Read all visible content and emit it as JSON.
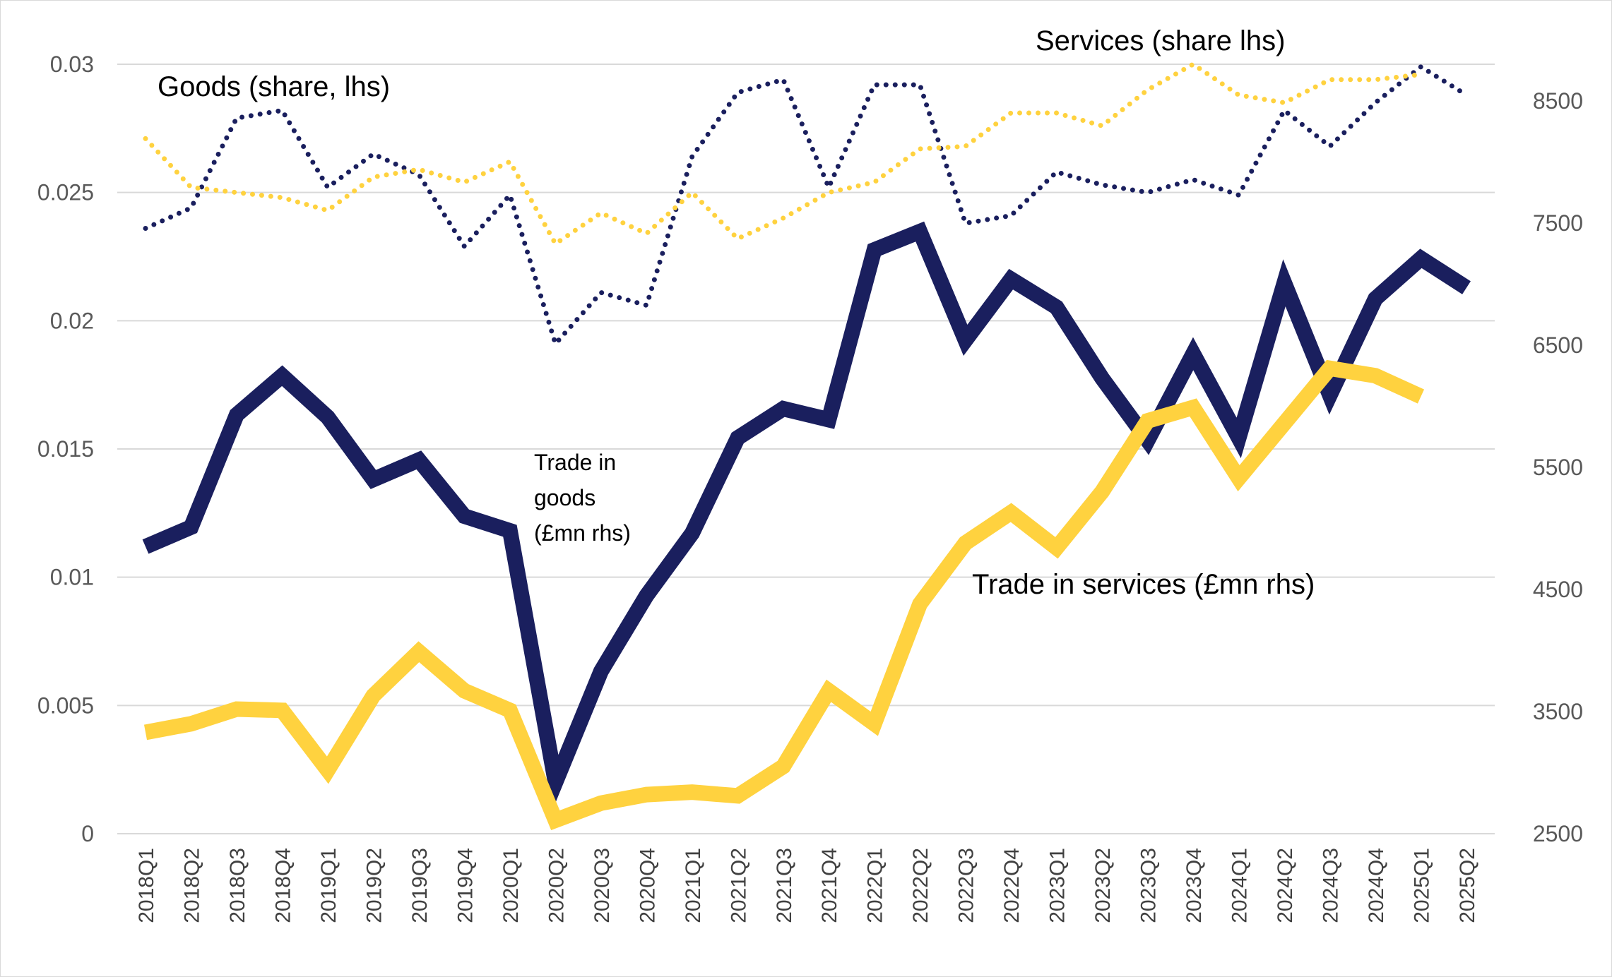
{
  "chart_data": {
    "type": "line",
    "categories": [
      "2018Q1",
      "2018Q2",
      "2018Q3",
      "2018Q4",
      "2019Q1",
      "2019Q2",
      "2019Q3",
      "2019Q4",
      "2020Q1",
      "2020Q2",
      "2020Q3",
      "2020Q4",
      "2021Q1",
      "2021Q2",
      "2021Q3",
      "2021Q4",
      "2022Q1",
      "2022Q2",
      "2022Q3",
      "2022Q4",
      "2023Q1",
      "2023Q2",
      "2023Q3",
      "2023Q4",
      "2024Q1",
      "2024Q2",
      "2024Q3",
      "2024Q4",
      "2025Q1",
      "2025Q2"
    ],
    "y_left": {
      "ticks": [
        "0",
        "0.005",
        "0.01",
        "0.015",
        "0.02",
        "0.025",
        "0.03"
      ],
      "range": [
        0,
        0.03
      ]
    },
    "y_right": {
      "ticks": [
        "2500",
        "3500",
        "4500",
        "5500",
        "6500",
        "7500",
        "8500"
      ],
      "range": [
        2500,
        8800
      ]
    },
    "grid": true,
    "series": [
      {
        "axis": "right",
        "style": "solid",
        "color": "#1a1f5e",
        "values": [
          4850,
          5010,
          5930,
          6250,
          5910,
          5400,
          5560,
          5100,
          4980,
          2920,
          3830,
          4450,
          4960,
          5740,
          5980,
          5890,
          7280,
          7430,
          6540,
          7040,
          6810,
          6230,
          5720,
          6430,
          5740,
          7010,
          6090,
          6880,
          7210,
          6970
        ]
      },
      {
        "axis": "right",
        "style": "solid",
        "color": "#ffd23f",
        "values": [
          3330,
          3400,
          3520,
          3510,
          3020,
          3630,
          3990,
          3670,
          3510,
          2610,
          2750,
          2820,
          2840,
          2810,
          3050,
          3670,
          3400,
          4380,
          4880,
          5130,
          4840,
          5300,
          5880,
          5990,
          5410,
          5860,
          6310,
          6250,
          6080,
          null
        ]
      },
      {
        "axis": "left",
        "style": "dotted",
        "color": "#1a1f5e",
        "values": [
          0.0236,
          0.0244,
          0.0279,
          0.0282,
          0.0252,
          0.0265,
          0.0257,
          0.0229,
          0.0249,
          0.0191,
          0.0211,
          0.0206,
          0.0264,
          0.0289,
          0.0294,
          0.0252,
          0.0292,
          0.0292,
          0.0238,
          0.0241,
          0.0258,
          0.0253,
          0.025,
          0.0255,
          0.0249,
          0.0282,
          0.0268,
          0.0285,
          0.0299,
          0.0288
        ]
      },
      {
        "axis": "left",
        "style": "dotted",
        "color": "#ffd23f",
        "values": [
          0.0271,
          0.0252,
          0.025,
          0.0248,
          0.0243,
          0.0256,
          0.0259,
          0.0254,
          0.0262,
          0.023,
          0.0242,
          0.0234,
          0.025,
          0.0232,
          0.024,
          0.025,
          0.0254,
          0.0267,
          0.0268,
          0.0281,
          0.0281,
          0.0276,
          0.029,
          0.03,
          0.0288,
          0.0285,
          0.0294,
          0.0294,
          0.0296,
          null
        ]
      }
    ],
    "annotations": [
      {
        "id": "goods-share",
        "lines": [
          "Goods (share, lhs)"
        ]
      },
      {
        "id": "services-share",
        "lines": [
          "Services (share lhs)"
        ]
      },
      {
        "id": "trade-goods",
        "lines": [
          "Trade in",
          "goods",
          "(£mn rhs)"
        ]
      },
      {
        "id": "trade-services",
        "lines": [
          "Trade in services (£mn rhs)"
        ]
      }
    ]
  }
}
